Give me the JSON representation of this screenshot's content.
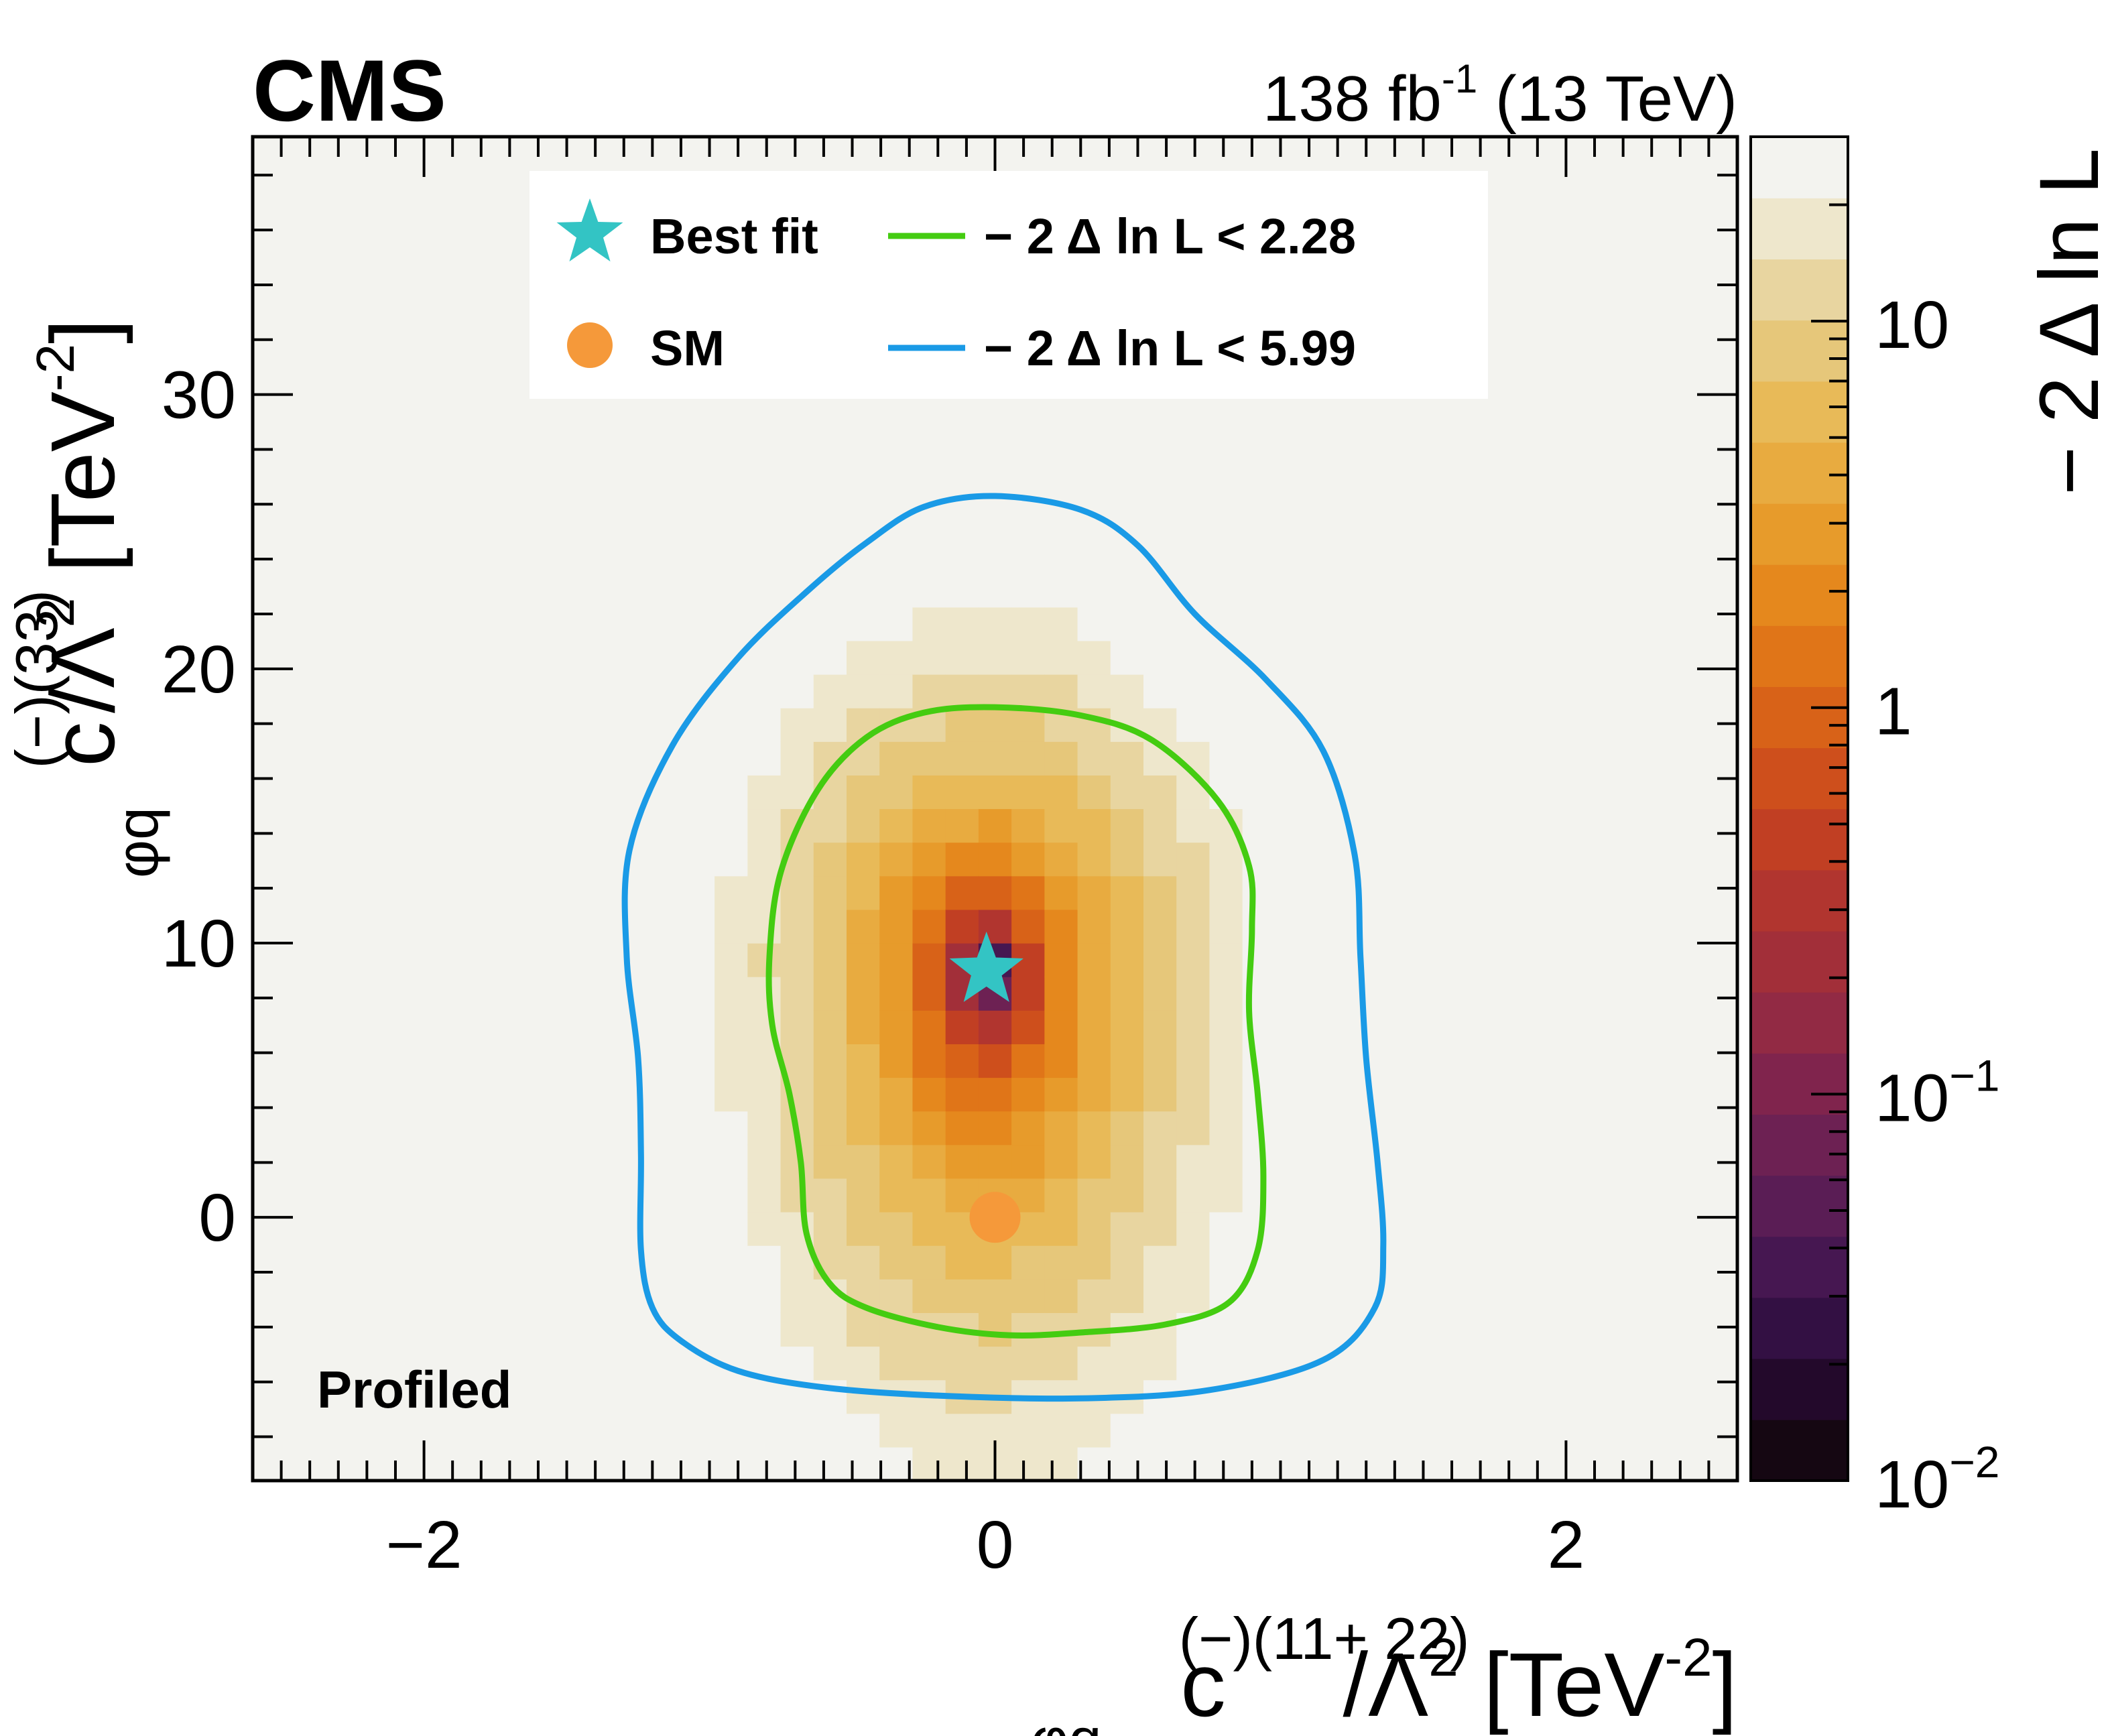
{
  "header": {
    "experiment": "CMS",
    "luminosity": "138",
    "lumi_unit_base": "fb",
    "lumi_unit_exp": "-1",
    "energy": "(13 TeV)"
  },
  "annotation": {
    "profiled": "Profiled"
  },
  "legend": {
    "best_fit_label": "Best fit",
    "sm_label": "SM",
    "contour_68_label": "− 2  Δ ln L < 2.28",
    "contour_95_label": "− 2  Δ ln L < 5.99"
  },
  "colors": {
    "best_fit": "#33c4c4",
    "sm": "#f5993a",
    "contour_68": "#44cc11",
    "contour_95": "#1a9ae6"
  },
  "icons": {
    "best_fit": "star-icon",
    "sm": "filled-circle-icon"
  },
  "colorbar": {
    "title": "− 2  Δ ln L",
    "ticks": [
      {
        "value": 0.01,
        "base": "10",
        "exp": "−2"
      },
      {
        "value": 0.1,
        "base": "10",
        "exp": "−1"
      },
      {
        "value": 1,
        "base": "1",
        "exp": ""
      },
      {
        "value": 10,
        "base": "10",
        "exp": ""
      }
    ],
    "range": [
      0.01,
      30
    ],
    "scale": "log",
    "palette": [
      "#150712",
      "#23092b",
      "#331043",
      "#461751",
      "#5a1d55",
      "#6d2153",
      "#80244d",
      "#922a44",
      "#a22f39",
      "#b1352f",
      "#c13f23",
      "#ce4f1c",
      "#d86218",
      "#e07518",
      "#e5881d",
      "#e79b2b",
      "#e8ab40",
      "#e8ba58",
      "#e6c77a",
      "#e8d5a0",
      "#eee7cc",
      "#f3f3ef"
    ]
  },
  "chart_data": {
    "type": "heatmap",
    "x_label": {
      "base": "c",
      "sub": "φq",
      "sup": "(−)(11+ 22)",
      "tail": "/Λ",
      "tail_sup": "2",
      "unit": "[TeV",
      "unit_sup": "-2",
      "unit_end": "]"
    },
    "y_label": {
      "base": "c",
      "sub": "φq",
      "sup": "(−)(33)",
      "tail": "/Λ",
      "tail_sup": "2",
      "unit": "[TeV",
      "unit_sup": "-2",
      "unit_end": "]"
    },
    "xlim": [
      -2.6,
      2.6
    ],
    "ylim": [
      -9.6,
      39.4
    ],
    "x_ticks": [
      -2,
      0,
      2
    ],
    "x_tick_labels": [
      "−2",
      "0",
      "2"
    ],
    "y_ticks": [
      0,
      10,
      20,
      30
    ],
    "y_tick_labels": [
      "0",
      "10",
      "20",
      "30"
    ],
    "bins": {
      "nx": 45,
      "ny": 40
    },
    "model": {
      "description": "-2 delta lnL surface approximated from the coloured bins",
      "best_fit": [
        -0.03,
        9.0
      ],
      "sigma_x": 0.51,
      "sigma_y_up": 7.25,
      "sigma_y_down": 10.3
    },
    "points": [
      {
        "name": "Best fit",
        "x": -0.03,
        "y": 9.0,
        "marker": "star"
      },
      {
        "name": "SM",
        "x": 0.0,
        "y": 0.0,
        "marker": "circle"
      }
    ],
    "contours": [
      {
        "label": "− 2  Δ ln L < 2.28",
        "level": 2.28,
        "points": [
          [
            0.0,
            18.6
          ],
          [
            -0.25,
            18.4
          ],
          [
            -0.45,
            17.5
          ],
          [
            -0.62,
            15.6
          ],
          [
            -0.75,
            12.6
          ],
          [
            -0.79,
            9.5
          ],
          [
            -0.78,
            7.0
          ],
          [
            -0.72,
            4.5
          ],
          [
            -0.68,
            2.0
          ],
          [
            -0.66,
            -0.6
          ],
          [
            -0.58,
            -2.4
          ],
          [
            -0.45,
            -3.3
          ],
          [
            -0.2,
            -4.0
          ],
          [
            0.05,
            -4.3
          ],
          [
            0.3,
            -4.2
          ],
          [
            0.6,
            -3.9
          ],
          [
            0.82,
            -3.1
          ],
          [
            0.92,
            -1.2
          ],
          [
            0.94,
            1.5
          ],
          [
            0.92,
            4.5
          ],
          [
            0.89,
            7.5
          ],
          [
            0.9,
            10.5
          ],
          [
            0.89,
            12.8
          ],
          [
            0.78,
            15.2
          ],
          [
            0.55,
            17.4
          ],
          [
            0.3,
            18.3
          ],
          [
            0.0,
            18.6
          ]
        ]
      },
      {
        "label": "− 2  Δ ln L < 5.99",
        "level": 5.99,
        "points": [
          [
            0.0,
            26.3
          ],
          [
            -0.25,
            25.9
          ],
          [
            -0.45,
            24.6
          ],
          [
            -0.65,
            22.9
          ],
          [
            -0.9,
            20.4
          ],
          [
            -1.13,
            17.2
          ],
          [
            -1.28,
            13.4
          ],
          [
            -1.29,
            9.5
          ],
          [
            -1.25,
            5.8
          ],
          [
            -1.24,
            2.3
          ],
          [
            -1.24,
            -1.2
          ],
          [
            -1.2,
            -3.3
          ],
          [
            -1.1,
            -4.5
          ],
          [
            -0.9,
            -5.6
          ],
          [
            -0.6,
            -6.2
          ],
          [
            -0.2,
            -6.5
          ],
          [
            0.3,
            -6.6
          ],
          [
            0.75,
            -6.3
          ],
          [
            1.15,
            -5.2
          ],
          [
            1.33,
            -3.3
          ],
          [
            1.36,
            -1.0
          ],
          [
            1.34,
            2.0
          ],
          [
            1.3,
            5.8
          ],
          [
            1.28,
            9.5
          ],
          [
            1.26,
            13.2
          ],
          [
            1.15,
            17.0
          ],
          [
            0.95,
            19.6
          ],
          [
            0.7,
            22.0
          ],
          [
            0.5,
            24.5
          ],
          [
            0.3,
            25.8
          ],
          [
            0.0,
            26.3
          ]
        ]
      }
    ]
  }
}
